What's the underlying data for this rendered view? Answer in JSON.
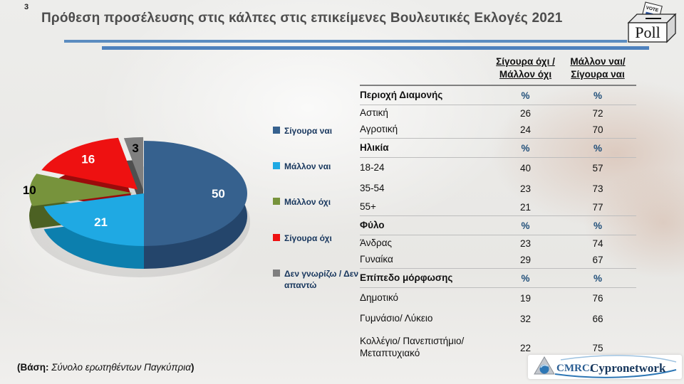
{
  "slide": {
    "number": "3",
    "title": "Πρόθεση προσέλευσης στις κάλπες στις επικείμενες Βουλευτικές Εκλογές 2021",
    "footer_prefix": "(Βάση:",
    "footer_italic": " Σύνολο ερωτηθέντων Παγκύπρια",
    "footer_suffix": ")",
    "accent_line_color_1": "#5b8cc0",
    "accent_line_color_2": "#4e81bd"
  },
  "poll_icon": {
    "box_label": "Poll",
    "paper_label": "VOTE"
  },
  "chart_data": {
    "type": "pie",
    "style": "3d-exploded",
    "title": "",
    "labels": [
      "Σίγουρα ναι",
      "Μάλλον ναι",
      "Μάλλον όχι",
      "Σίγουρα όχι",
      "Δεν γνωρίζω / Δεν απαντώ"
    ],
    "values": [
      50,
      21,
      10,
      16,
      3
    ],
    "colors": [
      "#36618e",
      "#1fa9e3",
      "#77933c",
      "#ee1111",
      "#7f7f7f"
    ],
    "side_colors": [
      "#24456b",
      "#0c7fae",
      "#4c6123",
      "#9b0b0b",
      "#4f4f4f"
    ],
    "exploded": [
      false,
      false,
      true,
      true,
      true
    ],
    "data_label_colors": [
      "#ffffff",
      "#ffffff",
      "#000000",
      "#ffffff",
      "#000000"
    ],
    "start_angle_deg": 0,
    "direction": "clockwise",
    "legend_position": "right"
  },
  "table": {
    "col_headers": [
      {
        "line1": "Σίγουρα όχι /",
        "line2": "Μάλλον όχι"
      },
      {
        "line1": "Μάλλον ναι/",
        "line2": "Σίγουρα ναι"
      }
    ],
    "rows": [
      {
        "label": "Περιοχή Διαμονής",
        "col1": "%",
        "col2": "%"
      },
      {
        "label": "Αστική",
        "col1": "26",
        "col2": "72"
      },
      {
        "label": "Αγροτική",
        "col1": "24",
        "col2": "70"
      },
      {
        "label": "Ηλικία",
        "col1": "%",
        "col2": "%"
      },
      {
        "label": "18-24",
        "col1": "40",
        "col2": "57"
      },
      {
        "label": "35-54",
        "col1": "23",
        "col2": "73"
      },
      {
        "label": "55+",
        "col1": "21",
        "col2": "77"
      },
      {
        "label": "Φύλο",
        "col1": "%",
        "col2": "%"
      },
      {
        "label": "Άνδρας",
        "col1": "23",
        "col2": "74"
      },
      {
        "label": "Γυναίκα",
        "col1": "29",
        "col2": "67"
      },
      {
        "label": "Επίπεδο μόρφωσης",
        "col1": "%",
        "col2": "%"
      },
      {
        "label": "Δημοτικό",
        "col1": "19",
        "col2": "76"
      },
      {
        "label": "Γυμνάσιο/ Λύκειο",
        "col1": "32",
        "col2": "66"
      },
      {
        "label": "Κολλέγιο/ Πανεπιστήμιο/ Μεταπτυχιακό",
        "col1": "22",
        "col2": "75"
      }
    ]
  },
  "logo": {
    "text_primary": "CMRC.",
    "text_secondary": "Cypronetwork"
  }
}
